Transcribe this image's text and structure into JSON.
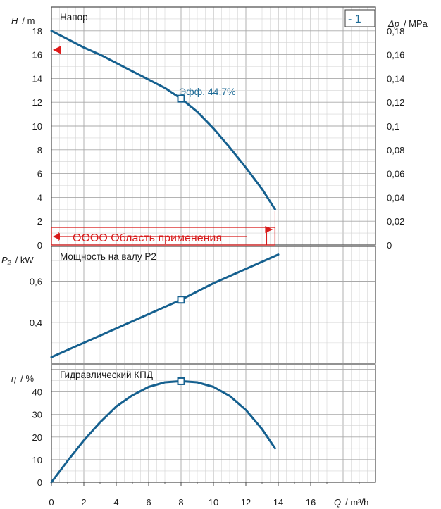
{
  "chart_data": [
    {
      "type": "line",
      "title": "Напор",
      "ylabel": "H",
      "yunit": "/ m",
      "ylim": [
        0,
        20
      ],
      "yticks": [
        0,
        2,
        4,
        6,
        8,
        10,
        12,
        14,
        16,
        18
      ],
      "y2label": "Δp",
      "y2unit": "/ MPa",
      "y2ticks": [
        "0",
        "0,02",
        "0,04",
        "0,06",
        "0,08",
        "0,1",
        "0,12",
        "0,14",
        "0,16",
        "0,18"
      ],
      "y2values": [
        0,
        0.02,
        0.04,
        0.06,
        0.08,
        0.1,
        0.12,
        0.14,
        0.16,
        0.18
      ],
      "xlim": [
        0,
        20
      ],
      "x": [
        0,
        1,
        2,
        3,
        4,
        5,
        6,
        7,
        8,
        9,
        10,
        11,
        12,
        13,
        13.8
      ],
      "y": [
        18.0,
        17.3,
        16.6,
        16.0,
        15.3,
        14.6,
        13.9,
        13.2,
        12.3,
        11.2,
        9.8,
        8.2,
        6.5,
        4.7,
        3.0
      ],
      "operating_point": {
        "x": 8,
        "y": 12.3,
        "label": "Эфф.  44,7%"
      },
      "head_marker": {
        "y": 16.4
      },
      "selection_label": "- 1",
      "application_range": {
        "x_from": 0,
        "x_to": 13.8,
        "label": "OOOO Область применения"
      },
      "grid": true
    },
    {
      "type": "line",
      "title": "Мощность на валу P2",
      "ylabel": "P₂",
      "yunit": "/ kW",
      "ylim": [
        0.2,
        0.77
      ],
      "yticks": [
        0.4,
        0.6
      ],
      "ytick_labels": [
        "0,4",
        "0,6"
      ],
      "xlim": [
        0,
        20
      ],
      "x": [
        0,
        2,
        4,
        6,
        8,
        10,
        12,
        14
      ],
      "y": [
        0.23,
        0.3,
        0.37,
        0.44,
        0.51,
        0.59,
        0.66,
        0.73
      ],
      "operating_point": {
        "x": 8,
        "y": 0.51
      },
      "grid": true
    },
    {
      "type": "line",
      "title": "Гидравлический КПД",
      "ylabel": "η",
      "yunit": "/ %",
      "ylim": [
        0,
        52
      ],
      "yticks": [
        0,
        10,
        20,
        30,
        40
      ],
      "xlim": [
        0,
        20
      ],
      "xticks": [
        0,
        2,
        4,
        6,
        8,
        10,
        12,
        14,
        16
      ],
      "xlabel": "Q",
      "xunit": "/ m³/h",
      "x": [
        0,
        1,
        2,
        3,
        4,
        5,
        6,
        7,
        8,
        9,
        10,
        11,
        12,
        13,
        13.8
      ],
      "y": [
        0,
        9.5,
        18.5,
        26.5,
        33.5,
        38.5,
        42.2,
        44.2,
        44.7,
        44.2,
        42.2,
        38.2,
        32.0,
        23.5,
        15.0
      ],
      "operating_point": {
        "x": 8,
        "y": 44.7
      },
      "grid": true
    }
  ]
}
